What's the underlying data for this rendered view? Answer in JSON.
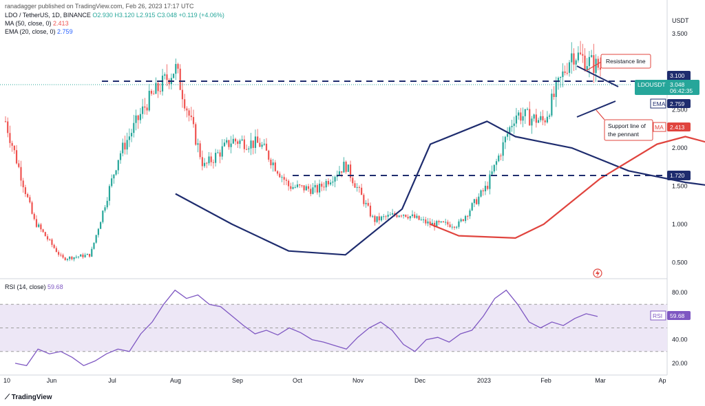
{
  "header": {
    "publisher": "ranadagger published on TradingView.com, Feb 26, 2023 17:17 UTC",
    "symbol_line": "LDO / TetherUS, 1D, BINANCE",
    "ohlc": "O2.930 H3.120 L2.915 C3.048 +0.119 (+4.06%)",
    "ma_label": "MA (50, close, 0)",
    "ma_value": "2.413",
    "ema_label": "EMA (20, close, 0)",
    "ema_value": "2.759",
    "rsi_label": "RSI (14, close)",
    "rsi_value": "59.68"
  },
  "currency": "USDT",
  "colors": {
    "up": "#26a69a",
    "down": "#ef5350",
    "ema": "#1e2c6e",
    "ma": "#e0443e",
    "rsi": "#7e57c2",
    "rsi_band": "#ede7f6",
    "level_line": "#1e2c6e"
  },
  "price_tags": {
    "resistance": "3.100",
    "current_symbol": "LDOUSDT",
    "current_price": "3.048",
    "countdown": "06:42:35",
    "ema_label": "EMA",
    "ema_value": "2.759",
    "ma_label": "MA",
    "ma_value": "2.413",
    "support": "1.720",
    "rsi_label": "RSI",
    "rsi_value": "59.68"
  },
  "annotations": {
    "resistance_line": "Resistance line",
    "support_line_1": "Support line of",
    "support_line_2": "the pennant"
  },
  "watermark": "TradingView",
  "chart_data": [
    {
      "type": "candlestick",
      "title": "LDO / TetherUS, 1D, BINANCE",
      "ylim": [
        0.35,
        3.85
      ],
      "y_ticks": [
        "3.500",
        "2.500",
        "2.000",
        "1.500",
        "1.000",
        "0.500"
      ],
      "x_ticks": [
        "10",
        "Jun",
        "Jul",
        "Aug",
        "Sep",
        "Oct",
        "Nov",
        "Dec",
        "2023",
        "Feb",
        "Mar",
        "Ap"
      ],
      "grid": false,
      "horizontal_levels": [
        3.1,
        1.72
      ],
      "price_path": [
        [
          "10",
          2.35
        ],
        [
          "Jun",
          1.05
        ],
        [
          "mid-Jun",
          0.55
        ],
        [
          "Jul",
          0.6
        ],
        [
          "mid-Jul",
          1.9
        ],
        [
          "Aug",
          2.6
        ],
        [
          "mid-Aug",
          3.05
        ],
        [
          "late-Aug",
          1.75
        ],
        [
          "Sep",
          2.1
        ],
        [
          "mid-Sep",
          2.05
        ],
        [
          "Oct",
          1.5
        ],
        [
          "mid-Oct",
          1.45
        ],
        [
          "Nov",
          1.78
        ],
        [
          "early-Nov",
          1.05
        ],
        [
          "Dec",
          1.15
        ],
        [
          "mid-Dec",
          1.0
        ],
        [
          "2023",
          1.0
        ],
        [
          "early-Jan",
          1.5
        ],
        [
          "mid-Jan",
          2.45
        ],
        [
          "Feb",
          2.35
        ],
        [
          "mid-Feb",
          3.25
        ],
        [
          "Feb 26",
          3.048
        ]
      ],
      "series": [
        {
          "name": "EMA (20, close, 0)",
          "last": 2.759,
          "values": [
            [
              5,
              1.4
            ],
            [
              7,
              1.0
            ],
            [
              9,
              0.65
            ],
            [
              11,
              0.6
            ],
            [
              13,
              1.2
            ],
            [
              14,
              2.05
            ],
            [
              16,
              2.35
            ],
            [
              17,
              2.15
            ],
            [
              19,
              2.0
            ],
            [
              21,
              1.7
            ],
            [
              23,
              1.55
            ],
            [
              24,
              1.5
            ],
            [
              25,
              1.3
            ],
            [
              27,
              1.2
            ],
            [
              29,
              1.05
            ],
            [
              31,
              0.98
            ],
            [
              33,
              1.4
            ],
            [
              35,
              2.0
            ],
            [
              37,
              2.2
            ],
            [
              39,
              2.55
            ],
            [
              40,
              2.759
            ]
          ]
        },
        {
          "name": "MA (50, close, 0)",
          "last": 2.413,
          "values": [
            [
              14,
              1.0
            ],
            [
              15,
              0.85
            ],
            [
              17,
              0.82
            ],
            [
              18,
              1.0
            ],
            [
              20,
              1.6
            ],
            [
              22,
              2.05
            ],
            [
              23,
              2.15
            ],
            [
              24,
              2.05
            ],
            [
              25,
              1.95
            ],
            [
              27,
              1.7
            ],
            [
              29,
              1.55
            ],
            [
              31,
              1.35
            ],
            [
              33,
              1.2
            ],
            [
              34,
              1.05
            ],
            [
              35,
              1.1
            ],
            [
              37,
              1.4
            ],
            [
              39,
              1.95
            ],
            [
              40,
              2.413
            ]
          ]
        }
      ]
    },
    {
      "type": "line",
      "title": "RSI (14, close)",
      "ylim": [
        10,
        90
      ],
      "y_ticks": [
        "80.00",
        "60.00",
        "40.00",
        "20.00"
      ],
      "band": [
        30,
        70
      ],
      "series": [
        {
          "name": "RSI (14, close)",
          "last": 59.68,
          "values": [
            20,
            18,
            32,
            28,
            30,
            25,
            18,
            22,
            28,
            32,
            30,
            45,
            55,
            70,
            82,
            75,
            78,
            70,
            68,
            60,
            52,
            45,
            48,
            44,
            50,
            46,
            40,
            38,
            35,
            32,
            42,
            50,
            55,
            48,
            36,
            30,
            40,
            42,
            38,
            45,
            48,
            60,
            75,
            82,
            70,
            55,
            50,
            55,
            52,
            58,
            62,
            59.68
          ]
        }
      ]
    }
  ]
}
